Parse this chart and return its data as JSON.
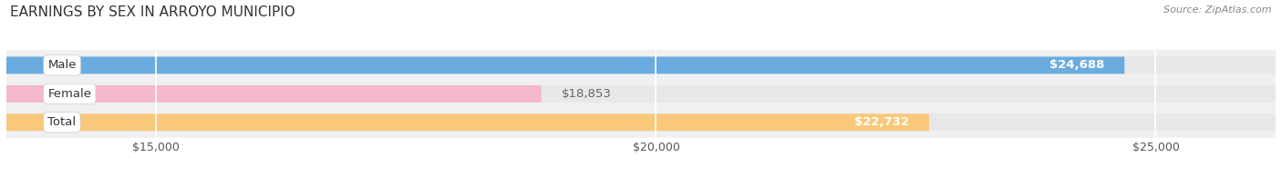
{
  "title": "EARNINGS BY SEX IN ARROYO MUNICIPIO",
  "source": "Source: ZipAtlas.com",
  "categories": [
    "Male",
    "Female",
    "Total"
  ],
  "values": [
    24688,
    18853,
    22732
  ],
  "bar_colors": [
    "#6aace0",
    "#f5b8ce",
    "#f9c87a"
  ],
  "bar_bg_color": "#e8e8e8",
  "xmin": 13500,
  "xmax": 26200,
  "xticks": [
    15000,
    20000,
    25000
  ],
  "xtick_labels": [
    "$15,000",
    "$20,000",
    "$25,000"
  ],
  "value_labels": [
    "$24,688",
    "$18,853",
    "$22,732"
  ],
  "title_fontsize": 11,
  "source_fontsize": 8,
  "bar_label_fontsize": 9.5,
  "tick_fontsize": 9,
  "cat_fontsize": 9.5,
  "fig_bg_color": "#ffffff",
  "plot_bg_color": "#f0f0f2",
  "grid_color": "#ffffff",
  "label_inside_color": [
    "white",
    "#666666",
    "white"
  ],
  "label_inside": [
    true,
    false,
    true
  ]
}
